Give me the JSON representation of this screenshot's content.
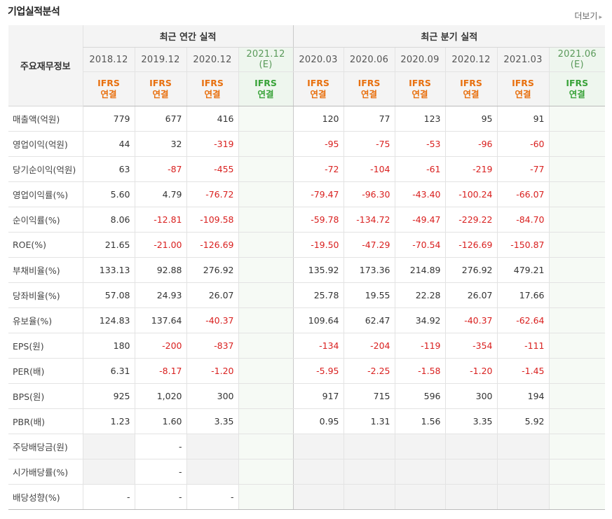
{
  "header": {
    "title": "기업실적분석",
    "more_label": "더보기",
    "more_icon": "triangle-right-icon"
  },
  "table": {
    "corner_label": "주요재무정보",
    "group_annual": "최근 연간 실적",
    "group_quarter": "최근 분기 실적",
    "periods": [
      {
        "date": "2018.12",
        "est": ""
      },
      {
        "date": "2019.12",
        "est": ""
      },
      {
        "date": "2020.12",
        "est": ""
      },
      {
        "date": "2021.12",
        "est": "(E)"
      },
      {
        "date": "2020.03",
        "est": ""
      },
      {
        "date": "2020.06",
        "est": ""
      },
      {
        "date": "2020.09",
        "est": ""
      },
      {
        "date": "2020.12",
        "est": ""
      },
      {
        "date": "2021.03",
        "est": ""
      },
      {
        "date": "2021.06",
        "est": "(E)"
      }
    ],
    "standard": {
      "top": "IFRS",
      "bottom": "연결"
    },
    "rows": [
      {
        "label": "매출액(억원)",
        "values": [
          "779",
          "677",
          "416",
          "",
          "120",
          "77",
          "123",
          "95",
          "91",
          ""
        ]
      },
      {
        "label": "영업이익(억원)",
        "values": [
          "44",
          "32",
          "-319",
          "",
          "-95",
          "-75",
          "-53",
          "-96",
          "-60",
          ""
        ]
      },
      {
        "label": "당기순이익(억원)",
        "values": [
          "63",
          "-87",
          "-455",
          "",
          "-72",
          "-104",
          "-61",
          "-219",
          "-77",
          ""
        ]
      },
      {
        "label": "영업이익률(%)",
        "values": [
          "5.60",
          "4.79",
          "-76.72",
          "",
          "-79.47",
          "-96.30",
          "-43.40",
          "-100.24",
          "-66.07",
          ""
        ]
      },
      {
        "label": "순이익률(%)",
        "values": [
          "8.06",
          "-12.81",
          "-109.58",
          "",
          "-59.78",
          "-134.72",
          "-49.47",
          "-229.22",
          "-84.70",
          ""
        ]
      },
      {
        "label": "ROE(%)",
        "values": [
          "21.65",
          "-21.00",
          "-126.69",
          "",
          "-19.50",
          "-47.29",
          "-70.54",
          "-126.69",
          "-150.87",
          ""
        ]
      },
      {
        "label": "부채비율(%)",
        "values": [
          "133.13",
          "92.88",
          "276.92",
          "",
          "135.92",
          "173.36",
          "214.89",
          "276.92",
          "479.21",
          ""
        ]
      },
      {
        "label": "당좌비율(%)",
        "values": [
          "57.08",
          "24.93",
          "26.07",
          "",
          "25.78",
          "19.55",
          "22.28",
          "26.07",
          "17.66",
          ""
        ]
      },
      {
        "label": "유보율(%)",
        "values": [
          "124.83",
          "137.64",
          "-40.37",
          "",
          "109.64",
          "62.47",
          "34.92",
          "-40.37",
          "-62.64",
          ""
        ]
      },
      {
        "label": "EPS(원)",
        "values": [
          "180",
          "-200",
          "-837",
          "",
          "-134",
          "-204",
          "-119",
          "-354",
          "-111",
          ""
        ]
      },
      {
        "label": "PER(배)",
        "values": [
          "6.31",
          "-8.17",
          "-1.20",
          "",
          "-5.95",
          "-2.25",
          "-1.58",
          "-1.20",
          "-1.45",
          ""
        ]
      },
      {
        "label": "BPS(원)",
        "values": [
          "925",
          "1,020",
          "300",
          "",
          "917",
          "715",
          "596",
          "300",
          "194",
          ""
        ]
      },
      {
        "label": "PBR(배)",
        "values": [
          "1.23",
          "1.60",
          "3.35",
          "",
          "0.95",
          "1.31",
          "1.56",
          "3.35",
          "5.92",
          ""
        ]
      },
      {
        "label": "주당배당금(원)",
        "values": [
          "",
          "-",
          "",
          "",
          "",
          "",
          "",
          "",
          "",
          ""
        ]
      },
      {
        "label": "시가배당률(%)",
        "values": [
          "",
          "-",
          "",
          "",
          "",
          "",
          "",
          "",
          "",
          ""
        ]
      },
      {
        "label": "배당성향(%)",
        "values": [
          "-",
          "-",
          "-",
          "",
          "",
          "",
          "",
          "",
          "",
          ""
        ]
      }
    ]
  },
  "colors": {
    "negative": "#d9201f",
    "ifrs": "#e8700f",
    "estimate_ifrs": "#39a339"
  }
}
